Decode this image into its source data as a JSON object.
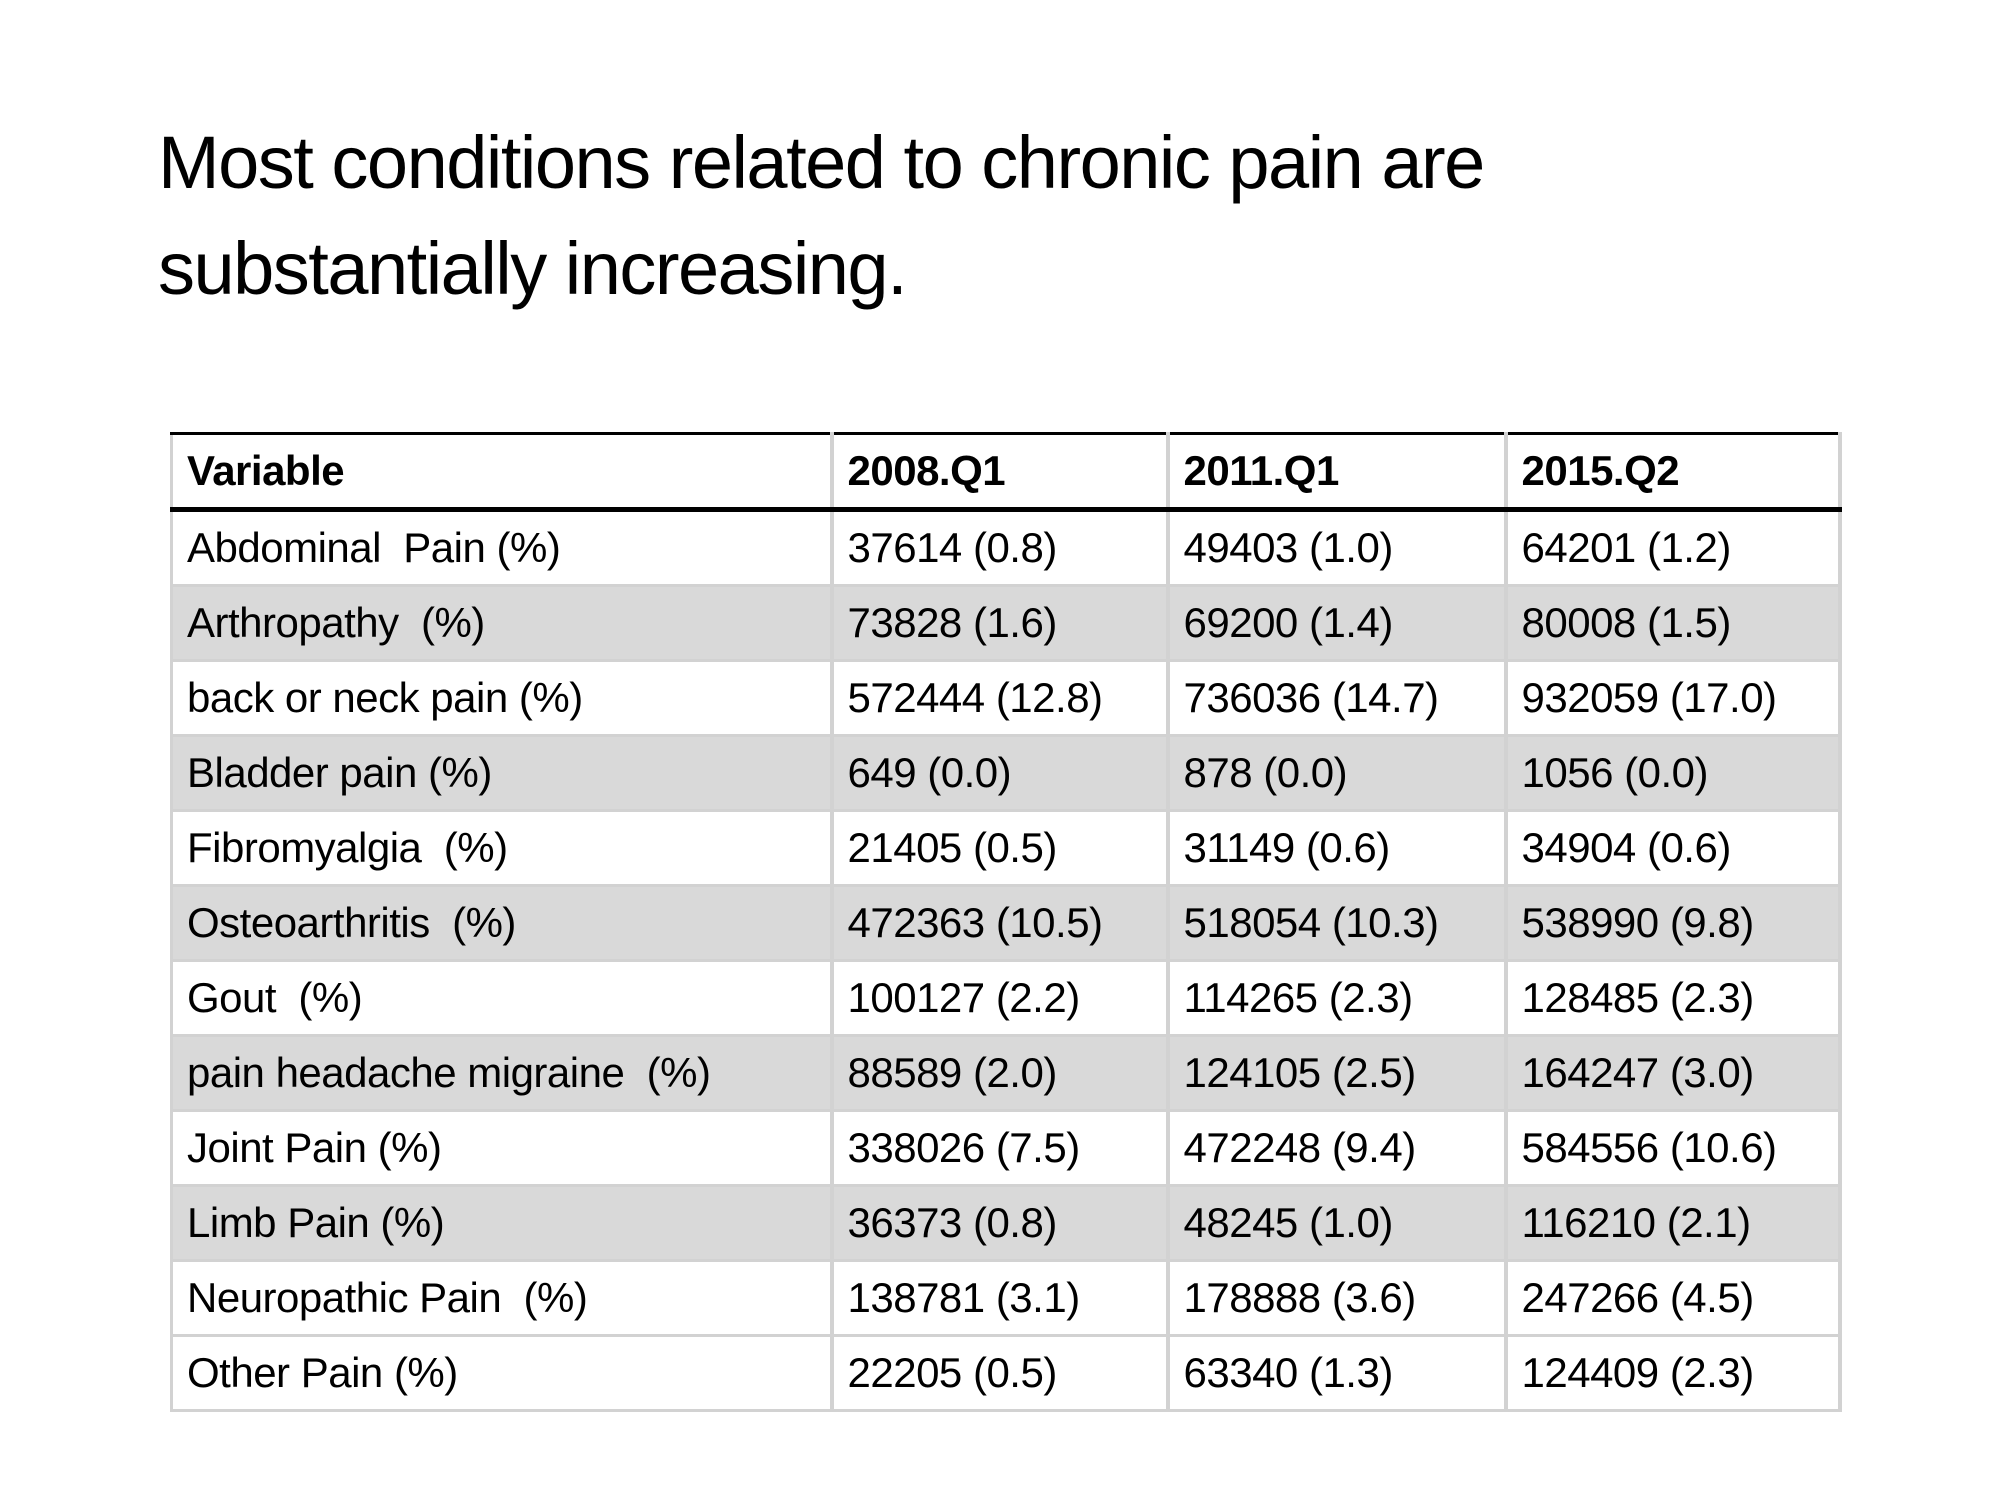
{
  "slide": {
    "title_line1": "Most conditions related to chronic pain are",
    "title_line2": "substantially increasing."
  },
  "table": {
    "columns": [
      "Variable",
      "2008.Q1",
      "2011.Q1",
      "2015.Q2"
    ],
    "rows": [
      {
        "variable": "Abdominal  Pain (%)",
        "values": [
          "37614 (0.8)",
          "49403 (1.0)",
          "64201 (1.2)"
        ],
        "shaded": false
      },
      {
        "variable": "Arthropathy  (%)",
        "values": [
          "73828 (1.6)",
          "69200 (1.4)",
          "80008 (1.5)"
        ],
        "shaded": true
      },
      {
        "variable": "back or neck pain (%)",
        "values": [
          "572444 (12.8)",
          "736036 (14.7)",
          "932059 (17.0)"
        ],
        "shaded": false
      },
      {
        "variable": "Bladder pain (%)",
        "values": [
          "649 (0.0)",
          "878 (0.0)",
          "1056 (0.0)"
        ],
        "shaded": true
      },
      {
        "variable": "Fibromyalgia  (%)",
        "values": [
          "21405 (0.5)",
          "31149 (0.6)",
          "34904 (0.6)"
        ],
        "shaded": false
      },
      {
        "variable": "Osteoarthritis  (%)",
        "values": [
          "472363 (10.5)",
          "518054 (10.3)",
          "538990 (9.8)"
        ],
        "shaded": true
      },
      {
        "variable": "Gout  (%)",
        "values": [
          "100127 (2.2)",
          "114265 (2.3)",
          "128485 (2.3)"
        ],
        "shaded": false
      },
      {
        "variable": "pain headache migraine  (%)",
        "values": [
          "88589 (2.0)",
          "124105 (2.5)",
          "164247 (3.0)"
        ],
        "shaded": true
      },
      {
        "variable": "Joint Pain (%)",
        "values": [
          "338026 (7.5)",
          "472248 (9.4)",
          "584556 (10.6)"
        ],
        "shaded": false
      },
      {
        "variable": "Limb Pain (%)",
        "values": [
          "36373 (0.8)",
          "48245 (1.0)",
          "116210 (2.1)"
        ],
        "shaded": true
      },
      {
        "variable": "Neuropathic Pain  (%)",
        "values": [
          "138781 (3.1)",
          "178888 (3.6)",
          "247266 (4.5)"
        ],
        "shaded": false
      },
      {
        "variable": "Other Pain (%)",
        "values": [
          "22205 (0.5)",
          "63340 (1.3)",
          "124409 (2.3)"
        ],
        "shaded": false
      }
    ]
  },
  "colors": {
    "background": "#ffffff",
    "text": "#000000",
    "row_shade": "#d9d9d9",
    "grid_line": "#d2d2d2",
    "header_rule": "#000000"
  }
}
